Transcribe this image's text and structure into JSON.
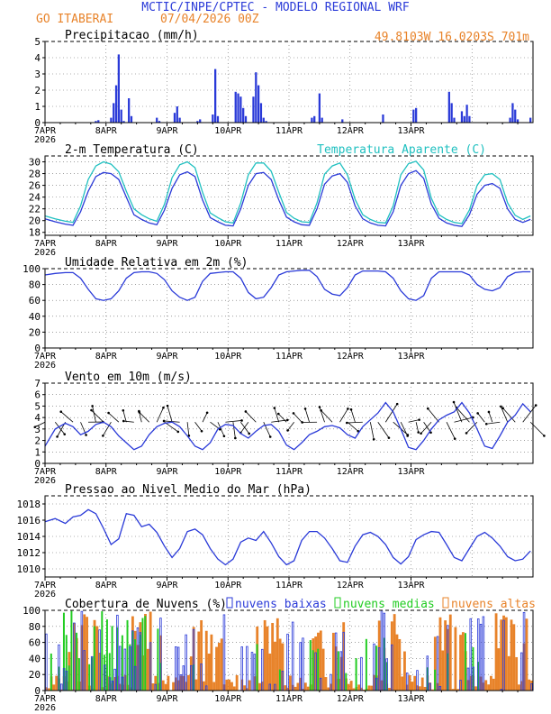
{
  "header": {
    "title": "MCTIC/INPE/CPTEC - MODELO REGIONAL WRF",
    "location": "GO ITABERAI",
    "run": "07/04/2026 00Z",
    "coords": "49.8103W 16.0203S 701m"
  },
  "colors": {
    "title": "#2a3ad8",
    "orange": "#e8832a",
    "blue": "#2a3ad8",
    "cyan": "#20c0c0",
    "green": "#22cc22",
    "black": "#000000"
  },
  "x_axis": {
    "days": [
      "7APR",
      "8APR",
      "9APR",
      "10APR",
      "11APR",
      "12APR",
      "13APR"
    ],
    "year": "2026",
    "hours_total": 168
  },
  "chart_data": [
    {
      "type": "bar",
      "title": "Precipitacao (mm/h)",
      "ylim": [
        0,
        5
      ],
      "yticks": [
        "0",
        "1",
        "2",
        "3",
        "4",
        "5"
      ],
      "bars": [
        [
          20,
          0.1
        ],
        [
          21,
          0.15
        ],
        [
          26,
          0.3
        ],
        [
          27,
          1.2
        ],
        [
          28,
          2.3
        ],
        [
          29,
          4.2
        ],
        [
          30,
          0.8
        ],
        [
          31,
          0.1
        ],
        [
          33,
          1.5
        ],
        [
          34,
          0.4
        ],
        [
          44,
          0.3
        ],
        [
          45,
          0.1
        ],
        [
          51,
          0.6
        ],
        [
          52,
          1.0
        ],
        [
          53,
          0.3
        ],
        [
          60,
          0.1
        ],
        [
          61,
          0.2
        ],
        [
          66,
          0.5
        ],
        [
          67,
          3.3
        ],
        [
          68,
          0.4
        ],
        [
          75,
          1.9
        ],
        [
          76,
          1.8
        ],
        [
          77,
          1.6
        ],
        [
          78,
          0.9
        ],
        [
          79,
          0.4
        ],
        [
          82,
          1.6
        ],
        [
          83,
          3.1
        ],
        [
          84,
          2.3
        ],
        [
          85,
          1.2
        ],
        [
          86,
          0.3
        ],
        [
          87,
          0.1
        ],
        [
          105,
          0.3
        ],
        [
          106,
          0.4
        ],
        [
          108,
          1.8
        ],
        [
          109,
          0.3
        ],
        [
          117,
          0.2
        ],
        [
          133,
          0.5
        ],
        [
          145,
          0.8
        ],
        [
          146,
          0.9
        ],
        [
          159,
          1.9
        ],
        [
          160,
          1.2
        ],
        [
          161,
          0.3
        ],
        [
          164,
          0.7
        ],
        [
          165,
          0.4
        ],
        [
          166,
          1.1
        ],
        [
          167,
          0.4
        ]
      ],
      "bars_tail": [
        [
          183,
          0.3
        ],
        [
          184,
          1.2
        ],
        [
          185,
          0.8
        ],
        [
          186,
          0.2
        ],
        [
          191,
          0.3
        ]
      ]
    },
    {
      "type": "line",
      "title": "2-m Temperatura (C)",
      "legend": "Temperatura Aparente (C)",
      "ylim": [
        17.5,
        31
      ],
      "yticks": [
        "18",
        "20",
        "22",
        "24",
        "26",
        "28",
        "30"
      ],
      "series": [
        {
          "name": "2-m Temperatura (C)",
          "color": "#2a3ad8",
          "x": [
            0,
            4,
            8,
            11,
            14,
            17,
            20,
            23,
            26,
            29,
            32,
            35,
            38,
            41,
            44,
            47,
            50,
            53,
            56,
            59,
            62,
            65,
            68,
            71,
            74,
            77,
            80,
            83,
            86,
            89,
            92,
            95,
            98,
            101,
            104,
            107,
            110,
            113,
            116,
            119,
            122,
            125,
            128,
            131,
            134,
            137,
            140,
            143,
            146,
            149,
            152,
            155,
            158,
            161,
            164,
            167,
            170,
            173,
            176,
            179,
            182,
            185,
            188,
            191
          ],
          "y": [
            20.3,
            19.8,
            19.4,
            19.2,
            21.5,
            25,
            27.5,
            28.2,
            28,
            27,
            24,
            21,
            20.2,
            19.6,
            19.3,
            21.8,
            25.5,
            27.8,
            28.3,
            27.5,
            23.5,
            20.5,
            19.8,
            19.2,
            19.1,
            22,
            26,
            28,
            28.2,
            27,
            23.5,
            20.6,
            19.8,
            19.3,
            19.2,
            22,
            26.2,
            27.6,
            28,
            26.5,
            22.5,
            20.3,
            19.6,
            19.2,
            19.1,
            21.5,
            26,
            28,
            28.5,
            27.2,
            22.8,
            20.4,
            19.6,
            19.2,
            19,
            21,
            24.5,
            26,
            26.3,
            25.5,
            22,
            20.2,
            19.7,
            20.2
          ]
        },
        {
          "name": "Temperatura Aparente (C)",
          "color": "#20c0c0",
          "x": [
            0,
            4,
            8,
            11,
            14,
            17,
            20,
            23,
            26,
            29,
            32,
            35,
            38,
            41,
            44,
            47,
            50,
            53,
            56,
            59,
            62,
            65,
            68,
            71,
            74,
            77,
            80,
            83,
            86,
            89,
            92,
            95,
            98,
            101,
            104,
            107,
            110,
            113,
            116,
            119,
            122,
            125,
            128,
            131,
            134,
            137,
            140,
            143,
            146,
            149,
            152,
            155,
            158,
            161,
            164,
            167,
            170,
            173,
            176,
            179,
            182,
            185,
            188,
            191
          ],
          "y": [
            20.8,
            20.3,
            19.9,
            19.7,
            22.5,
            27,
            29.3,
            30,
            29.6,
            28.3,
            25,
            22,
            21,
            20.3,
            19.9,
            22.8,
            27.3,
            29.5,
            30,
            29,
            24.8,
            21.3,
            20.5,
            19.8,
            19.6,
            23,
            27.8,
            29.8,
            29.8,
            28.4,
            24.8,
            21.4,
            20.4,
            19.8,
            19.7,
            23,
            27.9,
            29.3,
            29.8,
            27.8,
            23.6,
            21,
            20.2,
            19.7,
            19.6,
            22.5,
            27.8,
            29.7,
            30.1,
            28.6,
            23.8,
            21,
            20.2,
            19.7,
            19.5,
            21.8,
            26,
            27.8,
            28,
            27,
            23,
            20.9,
            20.2,
            20.8
          ]
        }
      ]
    },
    {
      "type": "line",
      "title": "Umidade Relativa em 2m (%)",
      "ylim": [
        0,
        100
      ],
      "yticks": [
        "0",
        "20",
        "40",
        "60",
        "80",
        "100"
      ],
      "series": [
        {
          "name": "",
          "color": "#2a3ad8",
          "x": [
            0,
            4,
            8,
            11,
            14,
            17,
            20,
            23,
            26,
            29,
            32,
            35,
            38,
            41,
            44,
            47,
            50,
            53,
            56,
            59,
            62,
            65,
            68,
            71,
            74,
            77,
            80,
            83,
            86,
            89,
            92,
            95,
            98,
            101,
            104,
            107,
            110,
            113,
            116,
            119,
            122,
            125,
            128,
            131,
            134,
            137,
            140,
            143,
            146,
            149,
            152,
            155,
            158,
            161,
            164,
            167,
            170,
            173,
            176,
            179,
            182,
            185,
            188,
            191
          ],
          "y": [
            92,
            94,
            95,
            95,
            88,
            74,
            62,
            60,
            62,
            72,
            88,
            95,
            96,
            96,
            94,
            86,
            72,
            64,
            60,
            64,
            84,
            94,
            95,
            96,
            96,
            88,
            70,
            62,
            64,
            76,
            92,
            96,
            97,
            98,
            98,
            90,
            74,
            68,
            66,
            76,
            92,
            97,
            97,
            97,
            96,
            88,
            72,
            62,
            60,
            66,
            88,
            96,
            96,
            96,
            96,
            92,
            80,
            74,
            72,
            76,
            90,
            95,
            96,
            96
          ]
        }
      ]
    },
    {
      "type": "line",
      "title": "Vento em 10m (m/s)",
      "ylim": [
        0,
        7
      ],
      "yticks": [
        "0",
        "1",
        "2",
        "3",
        "4",
        "5",
        "6",
        "7"
      ],
      "series": [
        {
          "name": "",
          "color": "#2a3ad8",
          "x": [
            0,
            4,
            8,
            11,
            14,
            17,
            20,
            23,
            26,
            29,
            32,
            35,
            38,
            41,
            44,
            47,
            50,
            53,
            56,
            59,
            62,
            65,
            68,
            71,
            74,
            77,
            80,
            83,
            86,
            89,
            92,
            95,
            98,
            101,
            104,
            107,
            110,
            113,
            116,
            119,
            122,
            125,
            128,
            131,
            134,
            137,
            140,
            143,
            146,
            149,
            152,
            155,
            158,
            161,
            164,
            167,
            170,
            173,
            176,
            179,
            182,
            185,
            188,
            191
          ],
          "y": [
            1.5,
            3,
            3.5,
            3.2,
            2.5,
            2.8,
            3.4,
            3.6,
            3.2,
            2.4,
            1.8,
            1.2,
            1.5,
            2.5,
            3.2,
            3.5,
            3.6,
            3.2,
            2.4,
            1.5,
            1.2,
            1.8,
            3,
            3.4,
            3.3,
            2.6,
            2.2,
            2.8,
            3.3,
            3.4,
            2.8,
            1.6,
            1.2,
            1.8,
            2.5,
            2.8,
            3.2,
            3.3,
            3.1,
            2.5,
            2.2,
            3.2,
            3.8,
            4.4,
            5.3,
            4.5,
            3,
            1.4,
            1.2,
            2,
            3,
            3.8,
            4.2,
            4.5,
            5.3,
            4.4,
            3,
            1.5,
            1.3,
            2.4,
            3.6,
            4.2,
            5.2,
            4.5
          ]
        }
      ]
    },
    {
      "type": "line",
      "title": "Pressao ao Nivel Medio do Mar (hPa)",
      "ylim": [
        1009,
        1019
      ],
      "yticks": [
        "1010",
        "1012",
        "1014",
        "1016",
        "1018"
      ],
      "series": [
        {
          "name": "",
          "color": "#2a3ad8",
          "x": [
            0,
            4,
            8,
            11,
            14,
            17,
            20,
            23,
            26,
            29,
            32,
            35,
            38,
            41,
            44,
            47,
            50,
            53,
            56,
            59,
            62,
            65,
            68,
            71,
            74,
            77,
            80,
            83,
            86,
            89,
            92,
            95,
            98,
            101,
            104,
            107,
            110,
            113,
            116,
            119,
            122,
            125,
            128,
            131,
            134,
            137,
            140,
            143,
            146,
            149,
            152,
            155,
            158,
            161,
            164,
            167,
            170,
            173,
            176,
            179,
            182,
            185,
            188,
            191
          ],
          "y": [
            1015.8,
            1016.2,
            1015.6,
            1016.4,
            1016.6,
            1017.3,
            1016.8,
            1015,
            1013,
            1013.7,
            1016.8,
            1016.6,
            1015.2,
            1015.5,
            1014.5,
            1012.8,
            1011.4,
            1012.5,
            1014.6,
            1014.9,
            1014.2,
            1012.5,
            1011.2,
            1010.5,
            1011.2,
            1013.3,
            1013.8,
            1013.5,
            1014.6,
            1013.2,
            1011.5,
            1010.5,
            1011,
            1013.5,
            1014.6,
            1014.6,
            1013.8,
            1012.5,
            1011,
            1010.8,
            1012.8,
            1014.2,
            1014.5,
            1014,
            1013,
            1011.4,
            1010.6,
            1011.5,
            1013.6,
            1014.2,
            1014.6,
            1014.5,
            1013,
            1011.4,
            1011,
            1012.5,
            1014,
            1014.5,
            1013.8,
            1012.8,
            1011.5,
            1011,
            1011.2,
            1012.2
          ]
        }
      ]
    },
    {
      "type": "bar",
      "title": "Cobertura de Nuvens (%)",
      "ylim": [
        0,
        100
      ],
      "yticks": [
        "0",
        "20",
        "40",
        "60",
        "80",
        "100"
      ],
      "legend": [
        {
          "label": "nuvens baixas",
          "color": "#2a3ad8"
        },
        {
          "label": "nuvens medias",
          "color": "#22cc22"
        },
        {
          "label": "nuvens altas",
          "color": "#e8832a"
        }
      ]
    }
  ]
}
